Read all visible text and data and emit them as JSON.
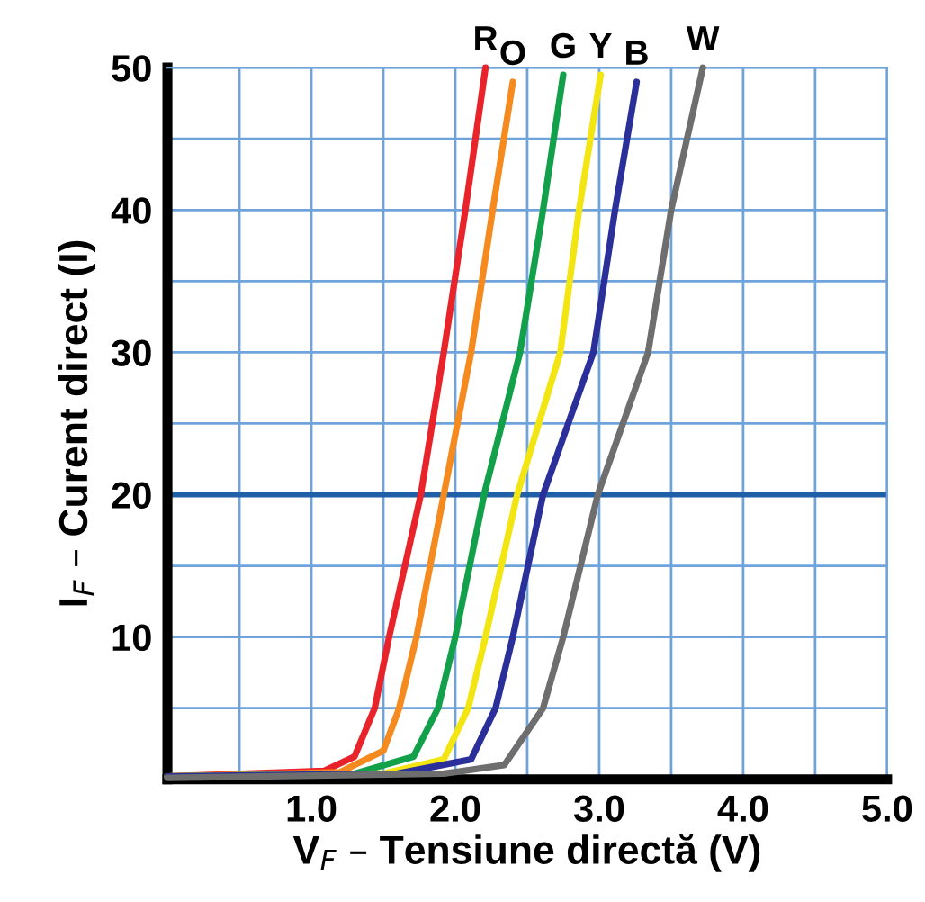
{
  "chart_data": {
    "type": "line",
    "xlabel": "V$_{F}$ – Tensiune directă (V)",
    "ylabel": "I$_{F}$ – Curent direct (I)",
    "xlim": [
      0,
      5
    ],
    "ylim": [
      0,
      50
    ],
    "xticks": [
      {
        "value": 0.5,
        "label": null
      },
      {
        "value": 1.0,
        "label": "1.0"
      },
      {
        "value": 1.5,
        "label": null
      },
      {
        "value": 2.0,
        "label": "2.0"
      },
      {
        "value": 2.5,
        "label": null
      },
      {
        "value": 3.0,
        "label": "3.0"
      },
      {
        "value": 3.5,
        "label": null
      },
      {
        "value": 4.0,
        "label": "4.0"
      },
      {
        "value": 4.5,
        "label": null
      },
      {
        "value": 5.0,
        "label": "5.0"
      }
    ],
    "yticks": [
      {
        "value": 5,
        "label": null
      },
      10,
      {
        "value": 15,
        "label": null
      },
      20,
      {
        "value": 25,
        "label": null
      },
      30,
      {
        "value": 35,
        "label": null
      },
      40,
      {
        "value": 45,
        "label": null
      },
      50
    ],
    "grid": true,
    "legend": false,
    "marker": "none",
    "line_style": "solid",
    "ref_lines": [
      {
        "axis": "y",
        "value": 20,
        "color": "#1f5fa8"
      }
    ],
    "series": [
      {
        "name": "R",
        "color": "#e8232a",
        "x": [
          0,
          1.09,
          1.3,
          1.44,
          1.54,
          1.76,
          1.92,
          2.07,
          2.21
        ],
        "values": [
          0.2,
          0.6,
          1.6,
          5,
          10,
          20,
          30,
          40,
          50
        ]
      },
      {
        "name": "O",
        "color": "#f58a1f",
        "x": [
          0,
          1.2,
          1.5,
          1.61,
          1.73,
          1.92,
          2.11,
          2.26,
          2.4
        ],
        "values": [
          0.2,
          0.5,
          2.0,
          5,
          10,
          20,
          30,
          40,
          49
        ]
      },
      {
        "name": "G",
        "color": "#12a04a",
        "x": [
          0,
          1.3,
          1.71,
          1.88,
          2.0,
          2.2,
          2.45,
          2.61,
          2.75
        ],
        "values": [
          0.2,
          0.4,
          1.6,
          5,
          10,
          20,
          30,
          40,
          49.5
        ]
      },
      {
        "name": "Y",
        "color": "#f2e512",
        "x": [
          0,
          1.5,
          1.92,
          2.09,
          2.21,
          2.43,
          2.73,
          2.86,
          3.01
        ],
        "values": [
          0.2,
          0.4,
          1.4,
          5,
          10,
          20,
          30,
          40,
          49.5
        ]
      },
      {
        "name": "B",
        "color": "#2a2f9a",
        "x": [
          0,
          1.6,
          2.11,
          2.28,
          2.4,
          2.61,
          2.96,
          3.11,
          3.26
        ],
        "values": [
          0.2,
          0.4,
          1.4,
          5,
          10,
          20,
          30,
          40,
          49
        ]
      },
      {
        "name": "W",
        "color": "#6e6e6e",
        "x": [
          0,
          1.92,
          2.34,
          2.61,
          2.75,
          2.99,
          3.34,
          3.5,
          3.72
        ],
        "values": [
          0.1,
          0.4,
          1.0,
          5,
          10,
          20,
          30,
          40,
          50
        ]
      }
    ]
  }
}
